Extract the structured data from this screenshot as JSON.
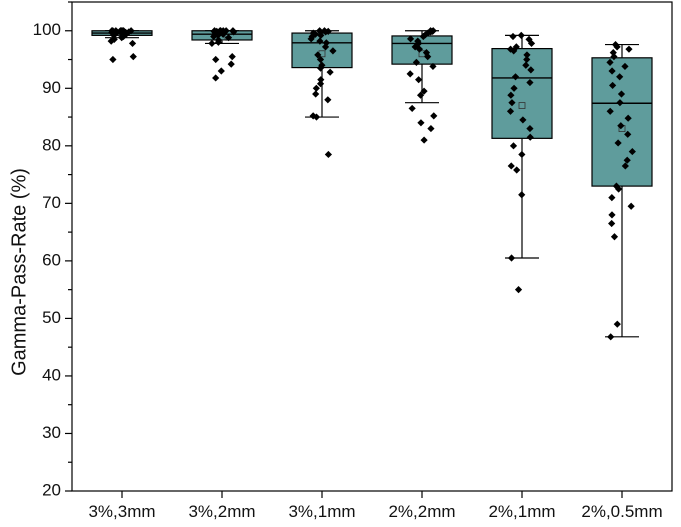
{
  "chart_data": {
    "type": "box",
    "ylabel": "Gamma-Pass-Rate (%)",
    "xlabel": "",
    "ylim": [
      20,
      105
    ],
    "yticks": [
      20,
      30,
      40,
      50,
      60,
      70,
      80,
      90,
      100
    ],
    "ytick_labels": [
      "20",
      "30",
      "40",
      "50",
      "60",
      "70",
      "80",
      "90",
      "100"
    ],
    "grid": false,
    "colors": {
      "box_fill": "#5f9c9c",
      "box_stroke": "#000000",
      "point": "#000000"
    },
    "categories": [
      "3%,3mm",
      "3%,2mm",
      "3%,1mm",
      "2%,2mm",
      "2%,1mm",
      "2%,0.5mm"
    ],
    "boxes": [
      {
        "name": "3%,3mm",
        "whisker_low": 98.8,
        "q1": 99.2,
        "median": 99.6,
        "q3": 100,
        "whisker_high": 100,
        "mean": 99.5,
        "points": [
          100,
          100,
          100,
          100,
          100,
          100,
          100,
          100,
          99.9,
          99.9,
          99.8,
          99.8,
          99.7,
          99.7,
          99.6,
          99.5,
          99.4,
          99.2,
          99,
          98.8,
          98.5,
          98.2,
          97.8,
          95.5,
          95
        ]
      },
      {
        "name": "3%,2mm",
        "whisker_low": 97.8,
        "q1": 98.4,
        "median": 99.4,
        "q3": 100,
        "whisker_high": 100,
        "mean": 98.9,
        "points": [
          100,
          100,
          100,
          100,
          100,
          100,
          99.9,
          99.9,
          99.8,
          99.7,
          99.6,
          99.4,
          99.2,
          99,
          98.8,
          98.4,
          98,
          97.8,
          95.5,
          95,
          94.2,
          93,
          91.8
        ]
      },
      {
        "name": "3%,1mm",
        "whisker_low": 85,
        "q1": 93.6,
        "median": 97.9,
        "q3": 99.6,
        "whisker_high": 100,
        "mean": 96,
        "points": [
          100,
          100,
          99.9,
          99.8,
          99.6,
          99.4,
          99.2,
          99,
          98.6,
          98.2,
          97.9,
          97.2,
          96.5,
          95.8,
          95,
          94,
          93.5,
          92.8,
          91.5,
          90.8,
          90,
          89,
          88,
          85.2,
          85,
          78.5
        ]
      },
      {
        "name": "2%,2mm",
        "whisker_low": 87.5,
        "q1": 94.2,
        "median": 97.8,
        "q3": 99.1,
        "whisker_high": 100,
        "mean": 96,
        "points": [
          100,
          100,
          99.9,
          99.8,
          99.6,
          99.3,
          99,
          98.6,
          98.2,
          97.8,
          97.2,
          96.8,
          96.2,
          95.5,
          94.5,
          93.8,
          92.5,
          91.5,
          89.5,
          88.8,
          86.5,
          85.2,
          84,
          83,
          81
        ]
      },
      {
        "name": "2%,1mm",
        "whisker_low": 60.5,
        "q1": 81.3,
        "median": 91.8,
        "q3": 96.9,
        "whisker_high": 99.2,
        "mean": 87,
        "points": [
          99.2,
          99,
          98.5,
          97.8,
          97.2,
          96.8,
          96.5,
          95.8,
          95,
          94,
          93.2,
          92,
          91,
          90,
          88.8,
          87.5,
          86,
          84.5,
          83,
          81.5,
          80,
          78.5,
          76.5,
          75.8,
          71.5,
          60.5,
          55
        ]
      },
      {
        "name": "2%,0.5mm",
        "whisker_low": 46.8,
        "q1": 73,
        "median": 87.4,
        "q3": 95.3,
        "whisker_high": 97.6,
        "mean": 83,
        "points": [
          97.6,
          97.2,
          96.8,
          96.2,
          95.5,
          94.5,
          93.8,
          93,
          92,
          90.5,
          89,
          87.5,
          86,
          84.8,
          83.5,
          82,
          80.5,
          79,
          77.5,
          76.5,
          73,
          72.5,
          71,
          69.5,
          68,
          66.5,
          64.2,
          49,
          46.8
        ]
      }
    ]
  }
}
